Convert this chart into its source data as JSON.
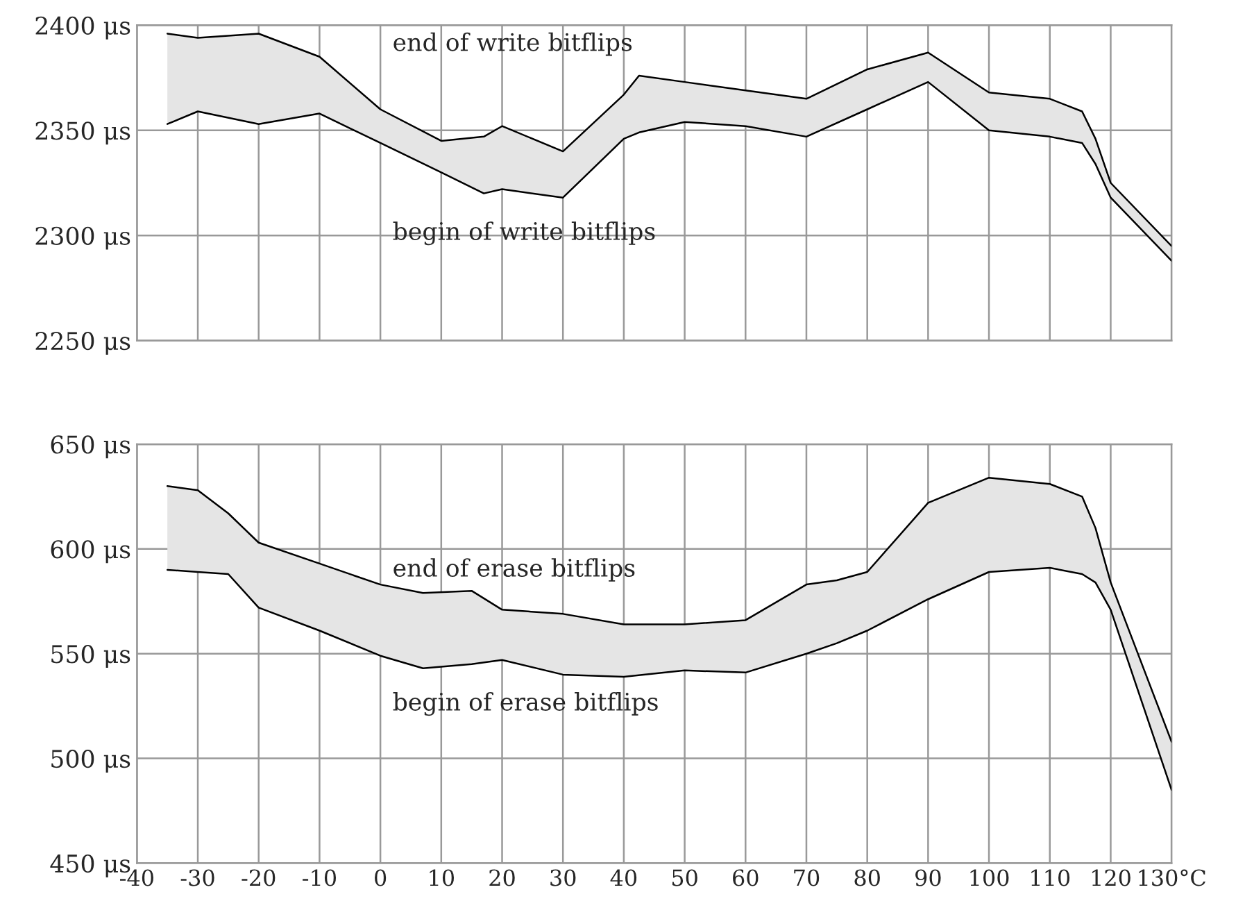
{
  "chart_data": [
    {
      "type": "line",
      "x": [
        -35,
        -30,
        -20,
        -10,
        0,
        10,
        17,
        20,
        30,
        40,
        42.5,
        50,
        60,
        70,
        80,
        90,
        100,
        110,
        115.3,
        117.5,
        120,
        130
      ],
      "series": [
        {
          "color": "#000000",
          "values": [
            2353,
            2359,
            2353,
            2358,
            2344,
            2330,
            2320,
            2322,
            2318,
            2346,
            2349,
            2354,
            2352,
            2347,
            2360,
            2373,
            2350,
            2347,
            2344,
            2334,
            2318,
            2288
          ]
        },
        {
          "color": "#000000",
          "values": [
            2396,
            2394,
            2396,
            2385,
            2360,
            2345,
            2347,
            2352,
            2340,
            2367,
            2376,
            2373,
            2369,
            2365,
            2379,
            2387,
            2368,
            2365,
            2359,
            2346,
            2325,
            2295
          ],
          "lower": [
            2353,
            2359,
            2353,
            2358,
            2344,
            2330,
            2320,
            2322,
            2318,
            2346,
            2349,
            2354,
            2352,
            2347,
            2360,
            2373,
            2350,
            2347,
            2344,
            2334,
            2318,
            2288
          ],
          "upper": [
            2396,
            2394,
            2396,
            2385,
            2360,
            2345,
            2347,
            2352,
            2340,
            2367,
            2376,
            2373,
            2369,
            2365,
            2379,
            2387,
            2368,
            2365,
            2359,
            2346,
            2325,
            2295
          ]
        }
      ],
      "xlim": [
        -40,
        130
      ],
      "xticks": [
        -40,
        -30,
        -20,
        -10,
        0,
        10,
        20,
        30,
        40,
        50,
        60,
        70,
        80,
        90,
        100,
        110,
        120,
        130
      ],
      "ylim": [
        2250,
        2400
      ],
      "yticks": [
        {
          "value": 2250,
          "label": "2250 μs"
        },
        {
          "value": 2300,
          "label": "2300 μs"
        },
        {
          "value": 2350,
          "label": "2350 μs"
        },
        {
          "value": 2400,
          "label": "2400 μs"
        }
      ],
      "grid": true,
      "tick_labels": "y",
      "line_style": "solid",
      "marker": "none",
      "annotations": [
        "end of write bitflips",
        "begin of write bitflips"
      ]
    },
    {
      "type": "line",
      "x": [
        -35,
        -30,
        -25,
        -20,
        -10,
        0,
        7,
        15,
        20,
        30,
        40,
        50,
        60,
        70,
        75,
        80,
        90,
        100,
        110,
        115.3,
        117.5,
        120,
        130
      ],
      "series": [
        {
          "color": "#000000",
          "values": [
            590,
            589,
            588,
            572,
            561,
            549,
            543,
            545,
            547,
            540,
            539,
            542,
            541,
            550,
            555,
            561,
            576,
            589,
            591,
            588,
            584,
            571,
            485
          ]
        },
        {
          "color": "#000000",
          "values": [
            630,
            628,
            617,
            603,
            593,
            583,
            579,
            580,
            571,
            569,
            564,
            564,
            566,
            583,
            585,
            589,
            622,
            634,
            631,
            625,
            610,
            584,
            508
          ],
          "lower": [
            590,
            589,
            588,
            572,
            561,
            549,
            543,
            545,
            547,
            540,
            539,
            542,
            541,
            550,
            555,
            561,
            576,
            589,
            591,
            588,
            584,
            571,
            485
          ],
          "upper": [
            630,
            628,
            617,
            603,
            593,
            583,
            579,
            580,
            571,
            569,
            564,
            564,
            566,
            583,
            585,
            589,
            622,
            634,
            631,
            625,
            610,
            584,
            508
          ]
        }
      ],
      "xlim": [
        -40,
        130
      ],
      "xticks": [
        -40,
        -30,
        -20,
        -10,
        0,
        10,
        20,
        30,
        40,
        50,
        60,
        70,
        80,
        90,
        100,
        110,
        120,
        {
          "value": 130,
          "label": "130°C"
        }
      ],
      "ylim": [
        450,
        650
      ],
      "yticks": [
        {
          "value": 450,
          "label": "450 μs"
        },
        {
          "value": 500,
          "label": "500 μs"
        },
        {
          "value": 550,
          "label": "550 μs"
        },
        {
          "value": 600,
          "label": "600 μs"
        },
        {
          "value": 650,
          "label": "650 μs"
        }
      ],
      "grid": true,
      "line_style": "solid",
      "marker": "none",
      "annotations": [
        "end of erase bitflips",
        "begin of erase bitflips"
      ]
    }
  ]
}
